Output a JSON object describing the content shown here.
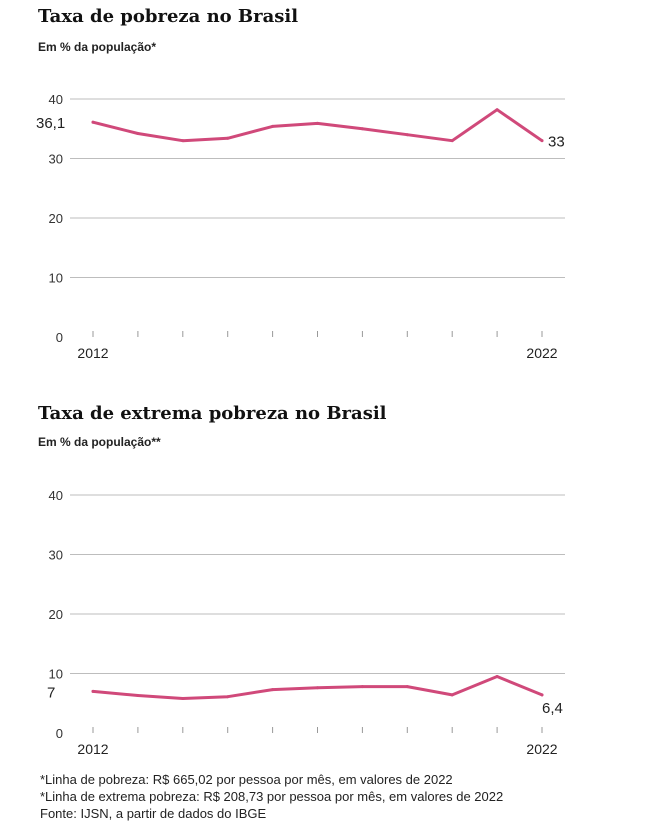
{
  "chart1": {
    "title": "Taxa de pobreza no Brasil",
    "subtitle": "Em % da população*"
  },
  "chart2": {
    "title": "Taxa de extrema pobreza no Brasil",
    "subtitle": "Em % da população**"
  },
  "chart_data": [
    {
      "type": "line",
      "title": "Taxa de pobreza no Brasil",
      "subtitle": "Em % da população*",
      "x": [
        2012,
        2013,
        2014,
        2015,
        2016,
        2017,
        2018,
        2019,
        2020,
        2021,
        2022
      ],
      "series": [
        {
          "values": [
            36.1,
            34.2,
            33.0,
            33.4,
            35.4,
            35.9,
            35.0,
            34.0,
            33.0,
            38.2,
            33.0
          ],
          "color": "#d0497a"
        }
      ],
      "ylim": [
        0,
        40
      ],
      "yticks": [
        0,
        10,
        20,
        30,
        40
      ],
      "xtick_labels": [
        "2012",
        "2022"
      ],
      "start_label": "36,1",
      "end_label": "33",
      "grid": true
    },
    {
      "type": "line",
      "title": "Taxa de extrema pobreza no Brasil",
      "subtitle": "Em % da população**",
      "x": [
        2012,
        2013,
        2014,
        2015,
        2016,
        2017,
        2018,
        2019,
        2020,
        2021,
        2022
      ],
      "series": [
        {
          "values": [
            7.0,
            6.3,
            5.8,
            6.1,
            7.3,
            7.6,
            7.8,
            7.8,
            6.4,
            9.5,
            6.4
          ],
          "color": "#d0497a"
        }
      ],
      "ylim": [
        0,
        40
      ],
      "yticks": [
        0,
        10,
        20,
        30,
        40
      ],
      "xtick_labels": [
        "2012",
        "2022"
      ],
      "start_label": "7",
      "end_label": "6,4",
      "grid": true
    }
  ],
  "notes": {
    "line1": "*Linha de pobreza: R$ 665,02 por pessoa por mês, em valores de 2022",
    "line2": "*Linha de extrema pobreza: R$ 208,73 por pessoa por mês, em valores de 2022",
    "line3": "Fonte: IJSN, a partir de dados do IBGE"
  }
}
